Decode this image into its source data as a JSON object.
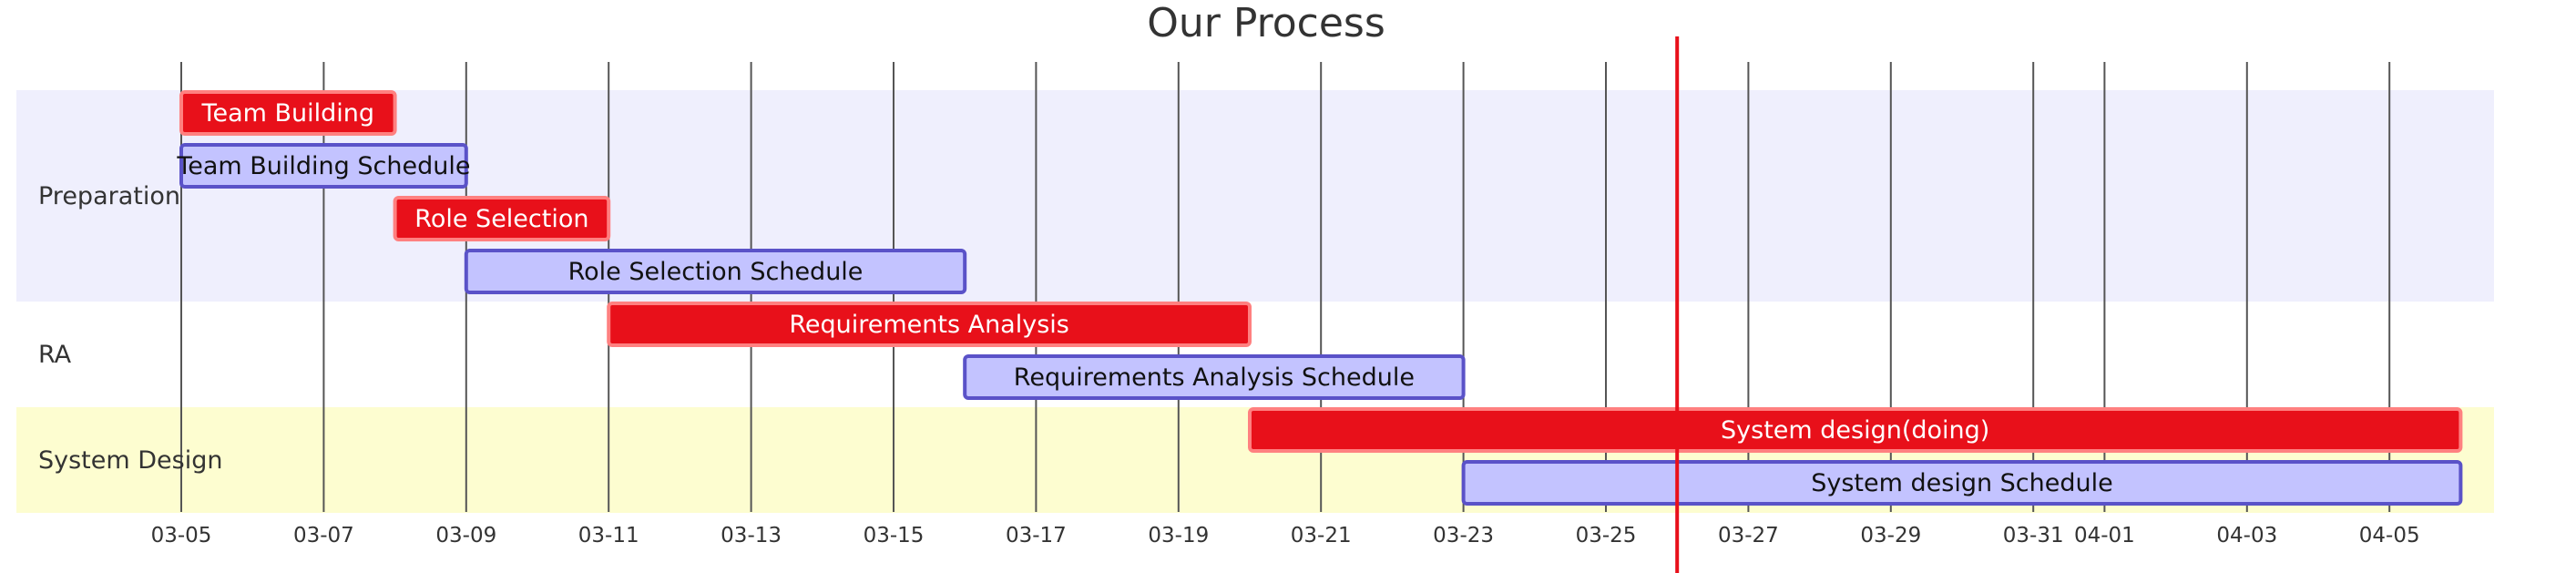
{
  "chart_data": {
    "type": "gantt",
    "title": "Our Process",
    "today": "2022-03-26",
    "x_range": [
      "2022-03-05",
      "2022-04-06"
    ],
    "x_ticks": [
      {
        "date": "2022-03-05",
        "label": "03-05"
      },
      {
        "date": "2022-03-07",
        "label": "03-07"
      },
      {
        "date": "2022-03-09",
        "label": "03-09"
      },
      {
        "date": "2022-03-11",
        "label": "03-11"
      },
      {
        "date": "2022-03-13",
        "label": "03-13"
      },
      {
        "date": "2022-03-15",
        "label": "03-15"
      },
      {
        "date": "2022-03-17",
        "label": "03-17"
      },
      {
        "date": "2022-03-19",
        "label": "03-19"
      },
      {
        "date": "2022-03-21",
        "label": "03-21"
      },
      {
        "date": "2022-03-23",
        "label": "03-23"
      },
      {
        "date": "2022-03-25",
        "label": "03-25"
      },
      {
        "date": "2022-03-27",
        "label": "03-27"
      },
      {
        "date": "2022-03-29",
        "label": "03-29"
      },
      {
        "date": "2022-03-31",
        "label": "03-31"
      },
      {
        "date": "2022-04-01",
        "label": "04-01"
      },
      {
        "date": "2022-04-03",
        "label": "04-03"
      },
      {
        "date": "2022-04-05",
        "label": "04-05"
      }
    ],
    "sections": [
      {
        "name": "Preparation",
        "color": "#efeffd"
      },
      {
        "name": "RA",
        "color": "#ffffff"
      },
      {
        "name": "System Design",
        "color": "#fdfdd0"
      }
    ],
    "tasks": [
      {
        "section": 0,
        "label": "Team Building",
        "start": "2022-03-05",
        "end": "2022-03-08",
        "kind": "actual"
      },
      {
        "section": 0,
        "label": "Team Building Schedule",
        "start": "2022-03-05",
        "end": "2022-03-09",
        "kind": "schedule"
      },
      {
        "section": 0,
        "label": "Role Selection",
        "start": "2022-03-08",
        "end": "2022-03-11",
        "kind": "actual"
      },
      {
        "section": 0,
        "label": "Role Selection Schedule",
        "start": "2022-03-09",
        "end": "2022-03-16",
        "kind": "schedule"
      },
      {
        "section": 1,
        "label": "Requirements Analysis",
        "start": "2022-03-11",
        "end": "2022-03-20",
        "kind": "actual"
      },
      {
        "section": 1,
        "label": "Requirements Analysis Schedule",
        "start": "2022-03-16",
        "end": "2022-03-23",
        "kind": "schedule"
      },
      {
        "section": 2,
        "label": "System design(doing)",
        "start": "2022-03-20",
        "end": "2022-04-06",
        "kind": "actual"
      },
      {
        "section": 2,
        "label": "System design Schedule",
        "start": "2022-03-23",
        "end": "2022-04-06",
        "kind": "schedule"
      }
    ],
    "colors": {
      "actual_fill": "#e8101a",
      "actual_stroke": "#ff8080",
      "actual_text": "#ffffff",
      "schedule_fill": "#c3c3ff",
      "schedule_stroke": "#5a52c8",
      "schedule_text": "#111111",
      "grid": "#555555",
      "today": "#e8101a"
    }
  }
}
